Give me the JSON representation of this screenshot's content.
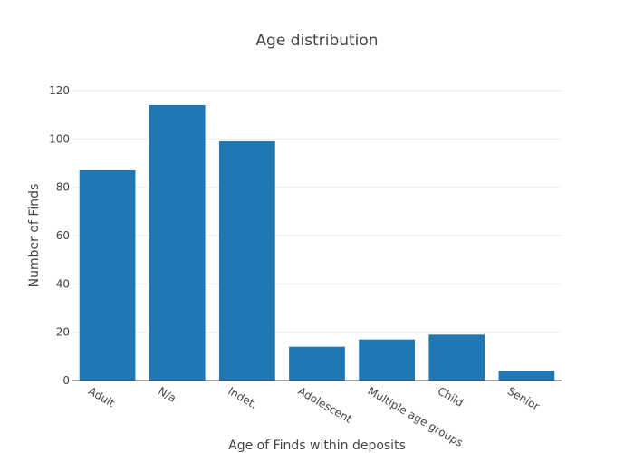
{
  "chart_data": {
    "type": "bar",
    "title": "Age distribution",
    "xlabel": "Age of Finds within deposits",
    "ylabel": "Number of Finds",
    "categories": [
      "Adult",
      "N/a",
      "Indet.",
      "Adolescent",
      "Multiple age groups",
      "Child",
      "Senior"
    ],
    "values": [
      87,
      114,
      99,
      14,
      17,
      19,
      4
    ],
    "ylim": [
      0,
      120
    ],
    "yticks": [
      0,
      20,
      40,
      60,
      80,
      100,
      120
    ],
    "grid": true,
    "legend": "none",
    "bar_color": "#1f77b4"
  }
}
